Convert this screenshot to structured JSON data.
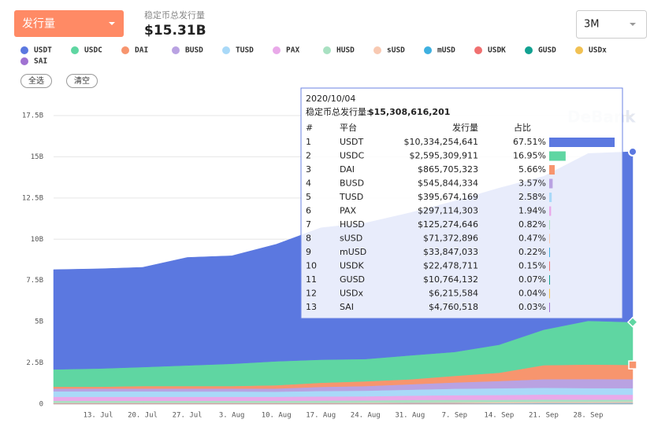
{
  "ui": {
    "dropdown": "发行量",
    "total_label": "稳定币总发行量",
    "total_value": "$15.31B",
    "range": "3M",
    "select_all": "全选",
    "clear": "清空",
    "watermark": "DeBank"
  },
  "chart_data": {
    "type": "area",
    "stacked": true,
    "grid": true,
    "categories": [
      null,
      "13. Jul",
      "20. Jul",
      "27. Jul",
      "3. Aug",
      "10. Aug",
      "17. Aug",
      "24. Aug",
      "31. Aug",
      "7. Sep",
      "14. Sep",
      "21. Sep",
      "28. Sep",
      null
    ],
    "ylim": [
      0,
      17.5
    ],
    "yticks": [
      0,
      {
        "value": 2.5,
        "label": "2.5B"
      },
      {
        "value": 5,
        "label": "5B"
      },
      {
        "value": 7.5,
        "label": "7.5B"
      },
      {
        "value": 10,
        "label": "10B"
      },
      {
        "value": 12.5,
        "label": "12.5B"
      },
      {
        "value": 15,
        "label": "15B"
      },
      {
        "value": 17.5,
        "label": "17.5B"
      }
    ],
    "series": [
      {
        "name": "USDT",
        "color": "#5b78e0",
        "values": [
          6.05,
          6.05,
          6.05,
          6.55,
          6.55,
          7.1,
          8.0,
          8.25,
          8.65,
          9.15,
          9.5,
          9.3,
          10.15,
          10.334
        ]
      },
      {
        "name": "USDC",
        "color": "#5fd6a2",
        "values": [
          1.05,
          1.1,
          1.15,
          1.25,
          1.35,
          1.45,
          1.4,
          1.35,
          1.45,
          1.45,
          1.7,
          2.15,
          2.65,
          2.595
        ]
      },
      {
        "name": "DAI",
        "color": "#f7956e",
        "values": [
          0.11,
          0.11,
          0.15,
          0.15,
          0.15,
          0.2,
          0.25,
          0.29,
          0.3,
          0.4,
          0.5,
          0.85,
          0.88,
          0.866
        ]
      },
      {
        "name": "BUSD",
        "color": "#b9a2e2",
        "values": [
          0.17,
          0.17,
          0.17,
          0.18,
          0.18,
          0.19,
          0.25,
          0.28,
          0.33,
          0.38,
          0.44,
          0.52,
          0.55,
          0.546
        ]
      },
      {
        "name": "TUSD",
        "color": "#a9d9f8",
        "values": [
          0.33,
          0.33,
          0.33,
          0.32,
          0.32,
          0.31,
          0.33,
          0.34,
          0.36,
          0.39,
          0.41,
          0.41,
          0.4,
          0.396
        ]
      },
      {
        "name": "PAX",
        "color": "#e9a9e9",
        "values": [
          0.24,
          0.24,
          0.24,
          0.24,
          0.24,
          0.24,
          0.25,
          0.25,
          0.26,
          0.28,
          0.29,
          0.3,
          0.3,
          0.297
        ]
      },
      {
        "name": "HUSD",
        "color": "#a9e1c2",
        "values": [
          0.12,
          0.12,
          0.12,
          0.12,
          0.12,
          0.12,
          0.13,
          0.13,
          0.14,
          0.14,
          0.14,
          0.14,
          0.13,
          0.125
        ]
      },
      {
        "name": "sUSD",
        "color": "#f8c9b2",
        "values": [
          0.02,
          0.02,
          0.02,
          0.02,
          0.02,
          0.02,
          0.02,
          0.03,
          0.04,
          0.05,
          0.06,
          0.07,
          0.07,
          0.071
        ]
      },
      {
        "name": "mUSD",
        "color": "#3fb0e0",
        "values": [
          0.01,
          0.01,
          0.01,
          0.01,
          0.01,
          0.01,
          0.01,
          0.01,
          0.02,
          0.02,
          0.02,
          0.03,
          0.03,
          0.034
        ]
      },
      {
        "name": "USDK",
        "color": "#f07070",
        "values": [
          0.03,
          0.03,
          0.03,
          0.03,
          0.03,
          0.03,
          0.03,
          0.03,
          0.03,
          0.03,
          0.02,
          0.02,
          0.02,
          0.022
        ]
      },
      {
        "name": "GUSD",
        "color": "#12a191",
        "values": [
          0.01,
          0.01,
          0.01,
          0.01,
          0.01,
          0.01,
          0.01,
          0.01,
          0.01,
          0.01,
          0.01,
          0.01,
          0.01,
          0.011
        ]
      },
      {
        "name": "USDx",
        "color": "#f1c153",
        "values": [
          0.006,
          0.006,
          0.006,
          0.006,
          0.006,
          0.006,
          0.006,
          0.006,
          0.006,
          0.006,
          0.006,
          0.006,
          0.006,
          0.006
        ]
      },
      {
        "name": "SAI",
        "color": "#a072d2",
        "values": [
          0.01,
          0.01,
          0.01,
          0.01,
          0.01,
          0.01,
          0.01,
          0.008,
          0.008,
          0.007,
          0.006,
          0.005,
          0.005,
          0.005
        ]
      }
    ]
  },
  "tooltip": {
    "date": "2020/10/04",
    "total_label": "稳定币总发行量:",
    "total": "$15,308,616,201",
    "headers": [
      "#",
      "平台",
      "发行量",
      "占比"
    ],
    "rows": [
      [
        "1",
        "USDT",
        "$10,334,254,641"
      ],
      [
        "2",
        "USDC",
        "$2,595,309,911"
      ],
      [
        "3",
        "DAI",
        "$865,705,323"
      ],
      [
        "4",
        "BUSD",
        "$545,844,334"
      ],
      [
        "5",
        "TUSD",
        "$395,674,169"
      ],
      [
        "6",
        "PAX",
        "$297,114,303"
      ],
      [
        "7",
        "HUSD",
        "$125,274,646"
      ],
      [
        "8",
        "sUSD",
        "$71,372,896"
      ],
      [
        "9",
        "mUSD",
        "$33,847,033"
      ],
      [
        "10",
        "USDK",
        "$22,478,711"
      ],
      [
        "11",
        "GUSD",
        "$10,764,132"
      ],
      [
        "12",
        "USDx",
        "$6,215,584"
      ],
      [
        "13",
        "SAI",
        "$4,760,518"
      ]
    ],
    "shares": [
      67.51,
      16.95,
      5.66,
      3.57,
      2.58,
      1.94,
      0.82,
      0.47,
      0.22,
      0.15,
      0.07,
      0.04,
      0.03
    ],
    "share_labels": [
      "67.51%",
      "16.95%",
      "5.66%",
      "3.57%",
      "2.58%",
      "1.94%",
      "0.82%",
      "0.47%",
      "0.22%",
      "0.15%",
      "0.07%",
      "0.04%",
      "0.03%"
    ]
  }
}
